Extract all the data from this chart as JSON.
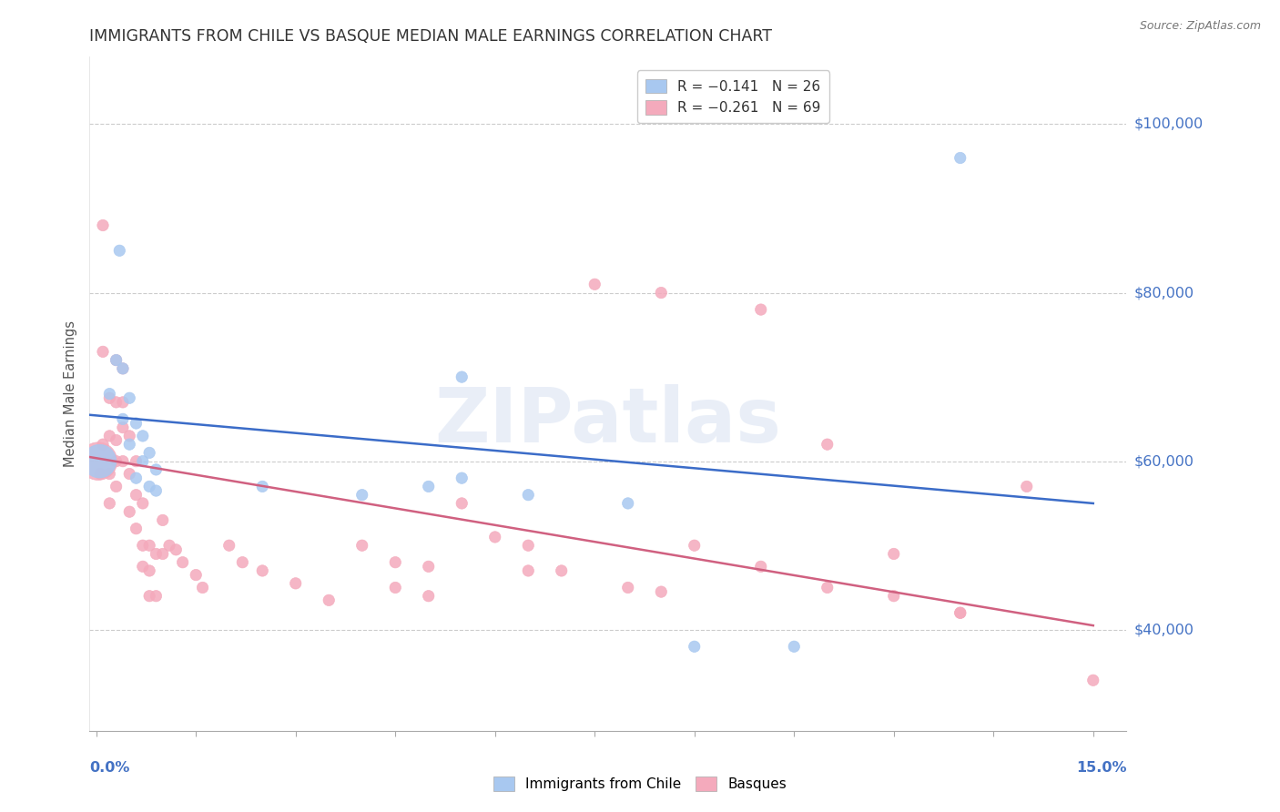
{
  "title": "IMMIGRANTS FROM CHILE VS BASQUE MEDIAN MALE EARNINGS CORRELATION CHART",
  "source": "Source: ZipAtlas.com",
  "ylabel": "Median Male Earnings",
  "ytick_vals": [
    40000,
    60000,
    80000,
    100000
  ],
  "ytick_labels": [
    "$40,000",
    "$60,000",
    "$80,000",
    "$100,000"
  ],
  "xlim": [
    -0.001,
    0.155
  ],
  "ylim": [
    28000,
    108000
  ],
  "watermark": "ZIPatlas",
  "series1_label": "Immigrants from Chile",
  "series2_label": "Basques",
  "series1_color": "#A8C8F0",
  "series2_color": "#F4AABC",
  "series1_line_color": "#3B6CC8",
  "series2_line_color": "#D06080",
  "title_fontsize": 13,
  "source_fontsize": 9,
  "legend_r1": "R = −0.141   N = 26",
  "legend_r2": "R = −0.261   N = 69",
  "chile_trend": [
    65500,
    55000
  ],
  "basque_trend": [
    60500,
    40500
  ],
  "chile_x": [
    0.0005,
    0.002,
    0.003,
    0.0035,
    0.004,
    0.004,
    0.005,
    0.005,
    0.006,
    0.006,
    0.007,
    0.007,
    0.008,
    0.008,
    0.009,
    0.009,
    0.025,
    0.04,
    0.05,
    0.055,
    0.065,
    0.08,
    0.09,
    0.105,
    0.13,
    0.055
  ],
  "chile_y": [
    60000,
    68000,
    72000,
    85000,
    65000,
    71000,
    62000,
    67500,
    58000,
    64500,
    60000,
    63000,
    57000,
    61000,
    56500,
    59000,
    57000,
    56000,
    57000,
    70000,
    56000,
    55000,
    38000,
    38000,
    96000,
    58000
  ],
  "chile_sizes": [
    700,
    80,
    80,
    80,
    80,
    80,
    80,
    80,
    80,
    80,
    80,
    80,
    80,
    80,
    80,
    80,
    80,
    80,
    80,
    80,
    80,
    80,
    80,
    80,
    80,
    80
  ],
  "basque_x": [
    0.0003,
    0.0006,
    0.001,
    0.001,
    0.001,
    0.002,
    0.002,
    0.002,
    0.002,
    0.003,
    0.003,
    0.003,
    0.003,
    0.003,
    0.004,
    0.004,
    0.004,
    0.004,
    0.005,
    0.005,
    0.005,
    0.006,
    0.006,
    0.006,
    0.007,
    0.007,
    0.007,
    0.008,
    0.008,
    0.008,
    0.009,
    0.009,
    0.01,
    0.01,
    0.011,
    0.012,
    0.013,
    0.015,
    0.016,
    0.02,
    0.022,
    0.025,
    0.03,
    0.035,
    0.04,
    0.045,
    0.045,
    0.05,
    0.05,
    0.055,
    0.06,
    0.065,
    0.065,
    0.07,
    0.08,
    0.085,
    0.09,
    0.1,
    0.11,
    0.12,
    0.13,
    0.14,
    0.15,
    0.075,
    0.085,
    0.1,
    0.11,
    0.12,
    0.13
  ],
  "basque_y": [
    60000,
    58500,
    88000,
    73000,
    62000,
    67500,
    63000,
    58500,
    55000,
    72000,
    67000,
    62500,
    60000,
    57000,
    71000,
    67000,
    64000,
    60000,
    63000,
    58500,
    54000,
    60000,
    56000,
    52000,
    55000,
    50000,
    47500,
    50000,
    47000,
    44000,
    49000,
    44000,
    53000,
    49000,
    50000,
    49500,
    48000,
    46500,
    45000,
    50000,
    48000,
    47000,
    45500,
    43500,
    50000,
    48000,
    45000,
    47500,
    44000,
    55000,
    51000,
    50000,
    47000,
    47000,
    45000,
    44500,
    50000,
    47500,
    45000,
    44000,
    42000,
    57000,
    34000,
    81000,
    80000,
    78000,
    62000,
    49000,
    42000
  ],
  "basque_sizes": [
    900,
    80,
    80,
    80,
    80,
    80,
    80,
    80,
    80,
    80,
    80,
    80,
    80,
    80,
    80,
    80,
    80,
    80,
    80,
    80,
    80,
    80,
    80,
    80,
    80,
    80,
    80,
    80,
    80,
    80,
    80,
    80,
    80,
    80,
    80,
    80,
    80,
    80,
    80,
    80,
    80,
    80,
    80,
    80,
    80,
    80,
    80,
    80,
    80,
    80,
    80,
    80,
    80,
    80,
    80,
    80,
    80,
    80,
    80,
    80,
    80,
    80,
    80,
    80,
    80,
    80,
    80,
    80,
    80
  ]
}
